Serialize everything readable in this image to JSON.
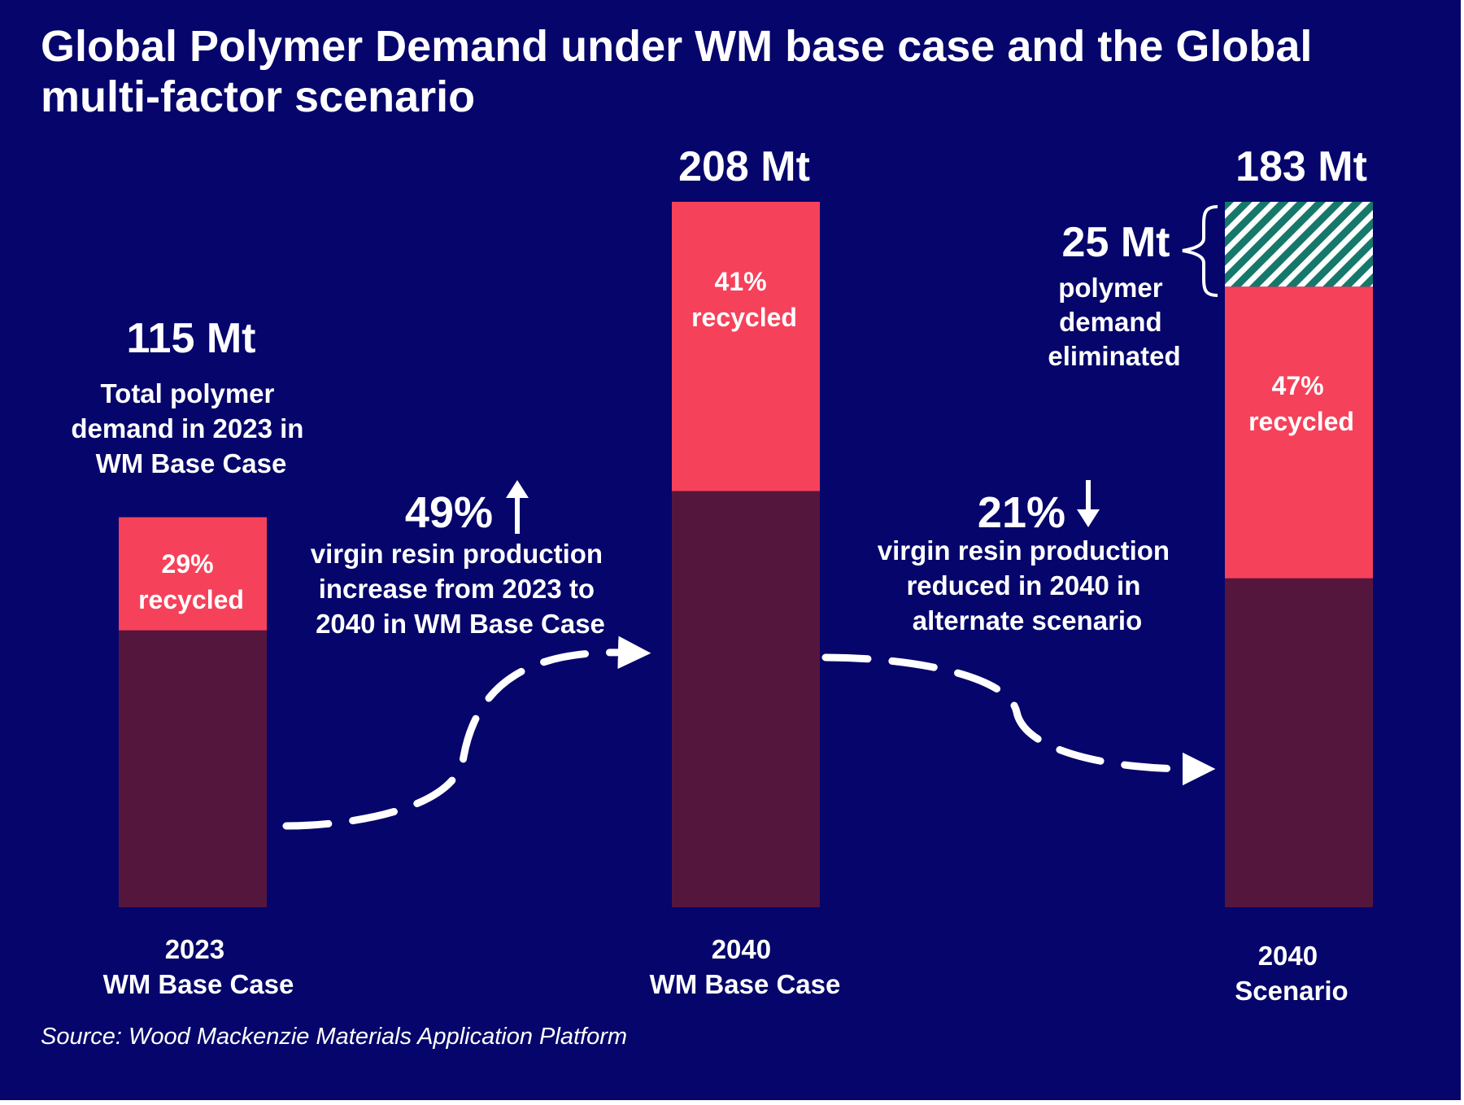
{
  "title": "Global Polymer Demand under WM base case and the Global multi-factor scenario",
  "source": "Source: Wood Mackenzie Materials Application Platform",
  "colors": {
    "background": "#05056b",
    "virgin": "#55163e",
    "recycled": "#f6415a",
    "eliminated": "#16786a",
    "text": "#ffffff"
  },
  "chart_data": {
    "type": "bar",
    "stacked": true,
    "unit": "Mt",
    "ylim": [
      0,
      208
    ],
    "categories": [
      [
        "2023",
        "WM Base Case"
      ],
      [
        "2040",
        "WM Base Case"
      ],
      [
        "2040",
        "Scenario"
      ]
    ],
    "totals": [
      115,
      208,
      183
    ],
    "total_labels": [
      "115 Mt",
      "208 Mt",
      "183 Mt"
    ],
    "recycled_share": [
      0.29,
      0.41,
      0.47
    ],
    "recycled_labels": [
      [
        "29%",
        "recycled"
      ],
      [
        "41%",
        "recycled"
      ],
      [
        "47%",
        "recycled"
      ]
    ],
    "eliminated": {
      "category_index": 2,
      "value": 25,
      "pattern": "diagonal-hatch"
    },
    "annotations": {
      "base_note": [
        "Total polymer",
        "demand in 2023 in",
        "WM Base Case"
      ],
      "increase": {
        "value": "49%",
        "direction": "up",
        "lines": [
          "virgin resin production",
          "increase from 2023 to",
          "2040 in WM Base Case"
        ]
      },
      "decrease": {
        "value": "21%",
        "direction": "down",
        "lines": [
          "virgin resin production",
          "reduced in 2040 in",
          "alternate scenario"
        ]
      },
      "eliminated_label": "25 Mt",
      "eliminated_lines": [
        "polymer",
        "demand",
        "eliminated"
      ]
    }
  }
}
